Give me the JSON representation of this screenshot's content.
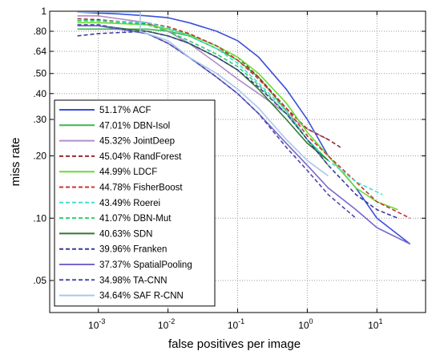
{
  "chart_data": {
    "type": "line",
    "xlabel": "false positives per image",
    "ylabel": "miss rate",
    "x_scale": "log",
    "y_scale": "log",
    "xlim": [
      0.0002,
      50
    ],
    "ylim": [
      0.035,
      1
    ],
    "x_ticks": [
      {
        "value": 0.001,
        "base": "10",
        "exp": "-3"
      },
      {
        "value": 0.01,
        "base": "10",
        "exp": "-2"
      },
      {
        "value": 0.1,
        "base": "10",
        "exp": "-1"
      },
      {
        "value": 1,
        "base": "10",
        "exp": "0"
      },
      {
        "value": 10,
        "base": "10",
        "exp": "1"
      }
    ],
    "y_ticks": [
      {
        "value": 1,
        "label": "1"
      },
      {
        "value": 0.8,
        "label": ".80"
      },
      {
        "value": 0.64,
        "label": ".64"
      },
      {
        "value": 0.5,
        "label": ".50"
      },
      {
        "value": 0.4,
        "label": ".40"
      },
      {
        "value": 0.3,
        "label": ".30"
      },
      {
        "value": 0.2,
        "label": ".20"
      },
      {
        "value": 0.1,
        "label": ".10"
      },
      {
        "value": 0.05,
        "label": ".05"
      }
    ],
    "grid": true,
    "legend_position": "lower-left",
    "series": [
      {
        "name": "51.17% ACF",
        "color": "#3a4fd9",
        "dash": "solid",
        "points": [
          [
            0.0005,
            0.99
          ],
          [
            0.001,
            0.98
          ],
          [
            0.002,
            0.97
          ],
          [
            0.005,
            0.95
          ],
          [
            0.01,
            0.93
          ],
          [
            0.02,
            0.88
          ],
          [
            0.05,
            0.8
          ],
          [
            0.1,
            0.72
          ],
          [
            0.2,
            0.6
          ],
          [
            0.5,
            0.42
          ],
          [
            1,
            0.3
          ],
          [
            2,
            0.2
          ],
          [
            5,
            0.14
          ],
          [
            10,
            0.1
          ],
          [
            30,
            0.075
          ]
        ]
      },
      {
        "name": "47.01% DBN-Isol",
        "color": "#3cb84a",
        "dash": "solid",
        "points": [
          [
            0.0005,
            0.82
          ],
          [
            0.001,
            0.82
          ],
          [
            0.005,
            0.82
          ],
          [
            0.01,
            0.8
          ],
          [
            0.02,
            0.76
          ],
          [
            0.05,
            0.66
          ],
          [
            0.1,
            0.58
          ],
          [
            0.2,
            0.48
          ],
          [
            0.5,
            0.33
          ],
          [
            1,
            0.24
          ],
          [
            2,
            0.18
          ]
        ]
      },
      {
        "name": "45.32% JointDeep",
        "color": "#b48cc8",
        "dash": "solid",
        "points": [
          [
            0.0005,
            0.95
          ],
          [
            0.001,
            0.95
          ],
          [
            0.005,
            0.88
          ],
          [
            0.01,
            0.8
          ],
          [
            0.02,
            0.7
          ],
          [
            0.05,
            0.56
          ],
          [
            0.1,
            0.47
          ],
          [
            0.2,
            0.4
          ],
          [
            0.5,
            0.32
          ],
          [
            1,
            0.27
          ],
          [
            2,
            0.24
          ]
        ]
      },
      {
        "name": "45.04% RandForest",
        "color": "#9a2a2a",
        "dash": "dashed",
        "points": [
          [
            0.0005,
            0.92
          ],
          [
            0.001,
            0.91
          ],
          [
            0.005,
            0.87
          ],
          [
            0.01,
            0.84
          ],
          [
            0.02,
            0.78
          ],
          [
            0.05,
            0.68
          ],
          [
            0.1,
            0.6
          ],
          [
            0.2,
            0.48
          ],
          [
            0.5,
            0.34
          ],
          [
            1,
            0.27
          ],
          [
            2,
            0.24
          ],
          [
            3,
            0.22
          ]
        ]
      },
      {
        "name": "44.99% LDCF",
        "color": "#66dd33",
        "dash": "solid",
        "points": [
          [
            0.0005,
            0.88
          ],
          [
            0.001,
            0.88
          ],
          [
            0.005,
            0.86
          ],
          [
            0.01,
            0.82
          ],
          [
            0.02,
            0.77
          ],
          [
            0.05,
            0.68
          ],
          [
            0.1,
            0.6
          ],
          [
            0.2,
            0.5
          ],
          [
            0.5,
            0.36
          ],
          [
            1,
            0.26
          ],
          [
            2,
            0.2
          ],
          [
            5,
            0.14
          ],
          [
            10,
            0.12
          ],
          [
            20,
            0.11
          ]
        ]
      },
      {
        "name": "44.78% FisherBoost",
        "color": "#cc3333",
        "dash": "dashed",
        "points": [
          [
            0.0005,
            0.9
          ],
          [
            0.001,
            0.9
          ],
          [
            0.005,
            0.88
          ],
          [
            0.01,
            0.84
          ],
          [
            0.02,
            0.78
          ],
          [
            0.05,
            0.68
          ],
          [
            0.1,
            0.58
          ],
          [
            0.2,
            0.47
          ],
          [
            0.5,
            0.34
          ],
          [
            1,
            0.25
          ],
          [
            2,
            0.2
          ],
          [
            5,
            0.15
          ],
          [
            10,
            0.12
          ],
          [
            30,
            0.1
          ]
        ]
      },
      {
        "name": "43.49% Roerei",
        "color": "#40e0d0",
        "dash": "dashed",
        "points": [
          [
            0.0005,
            0.9
          ],
          [
            0.001,
            0.9
          ],
          [
            0.005,
            0.88
          ],
          [
            0.01,
            0.83
          ],
          [
            0.02,
            0.76
          ],
          [
            0.05,
            0.66
          ],
          [
            0.1,
            0.56
          ],
          [
            0.2,
            0.45
          ],
          [
            0.5,
            0.33
          ],
          [
            1,
            0.24
          ],
          [
            2,
            0.19
          ],
          [
            5,
            0.15
          ],
          [
            12,
            0.13
          ]
        ]
      },
      {
        "name": "41.07% DBN-Mut",
        "color": "#33cc77",
        "dash": "dashed",
        "points": [
          [
            0.0005,
            0.9
          ],
          [
            0.001,
            0.9
          ],
          [
            0.005,
            0.86
          ],
          [
            0.01,
            0.8
          ],
          [
            0.02,
            0.72
          ],
          [
            0.05,
            0.62
          ],
          [
            0.1,
            0.54
          ],
          [
            0.2,
            0.44
          ],
          [
            0.5,
            0.32
          ],
          [
            1,
            0.24
          ],
          [
            2,
            0.19
          ]
        ]
      },
      {
        "name": "40.63% SDN",
        "color": "#2f7a2f",
        "dash": "solid",
        "points": [
          [
            0.0005,
            0.85
          ],
          [
            0.001,
            0.85
          ],
          [
            0.005,
            0.8
          ],
          [
            0.01,
            0.76
          ],
          [
            0.02,
            0.7
          ],
          [
            0.05,
            0.6
          ],
          [
            0.1,
            0.52
          ],
          [
            0.2,
            0.42
          ],
          [
            0.5,
            0.3
          ],
          [
            1,
            0.23
          ],
          [
            2,
            0.19
          ]
        ]
      },
      {
        "name": "39.96% Franken",
        "color": "#3a3a9a",
        "dash": "dashed",
        "points": [
          [
            0.0005,
            0.76
          ],
          [
            0.001,
            0.78
          ],
          [
            0.005,
            0.8
          ],
          [
            0.01,
            0.76
          ],
          [
            0.02,
            0.7
          ],
          [
            0.05,
            0.6
          ],
          [
            0.1,
            0.52
          ],
          [
            0.2,
            0.43
          ],
          [
            0.5,
            0.32
          ],
          [
            1,
            0.24
          ],
          [
            2,
            0.18
          ],
          [
            5,
            0.13
          ],
          [
            10,
            0.11
          ],
          [
            20,
            0.1
          ]
        ]
      },
      {
        "name": "37.37% SpatialPooling",
        "color": "#7a66cc",
        "dash": "solid",
        "points": [
          [
            0.0005,
            0.85
          ],
          [
            0.001,
            0.85
          ],
          [
            0.005,
            0.78
          ],
          [
            0.01,
            0.7
          ],
          [
            0.02,
            0.6
          ],
          [
            0.05,
            0.48
          ],
          [
            0.1,
            0.4
          ],
          [
            0.2,
            0.32
          ],
          [
            0.5,
            0.23
          ],
          [
            1,
            0.18
          ],
          [
            2,
            0.14
          ],
          [
            5,
            0.11
          ],
          [
            10,
            0.09
          ],
          [
            30,
            0.075
          ]
        ]
      },
      {
        "name": "34.98% TA-CNN",
        "color": "#4a4aaa",
        "dash": "dashed",
        "points": [
          [
            0.0005,
            0.86
          ],
          [
            0.001,
            0.86
          ],
          [
            0.005,
            0.78
          ],
          [
            0.01,
            0.7
          ],
          [
            0.02,
            0.6
          ],
          [
            0.05,
            0.48
          ],
          [
            0.1,
            0.4
          ],
          [
            0.2,
            0.32
          ],
          [
            0.5,
            0.22
          ],
          [
            1,
            0.17
          ],
          [
            2,
            0.13
          ],
          [
            5,
            0.1
          ]
        ]
      },
      {
        "name": "34.64% SAF R-CNN",
        "color": "#a8c8e8",
        "dash": "solid",
        "points": [
          [
            0.0005,
            0.99
          ],
          [
            0.004,
            0.99
          ],
          [
            0.004,
            0.8
          ],
          [
            0.01,
            0.72
          ],
          [
            0.02,
            0.6
          ],
          [
            0.05,
            0.5
          ],
          [
            0.1,
            0.42
          ],
          [
            0.2,
            0.34
          ],
          [
            0.5,
            0.24
          ],
          [
            1,
            0.19
          ],
          [
            2,
            0.16
          ]
        ]
      }
    ]
  }
}
